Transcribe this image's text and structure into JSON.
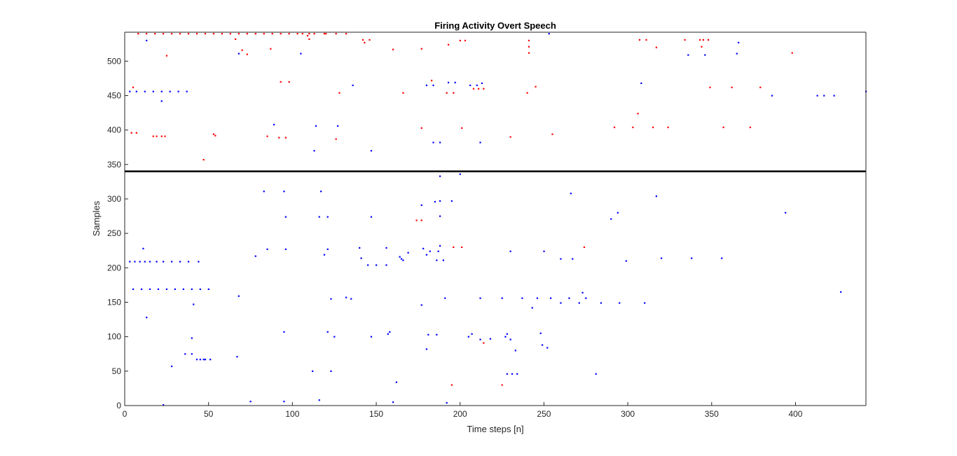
{
  "chart_data": {
    "type": "scatter",
    "title": "Firing Activity Overt Speech",
    "xlabel": "Time steps [n]",
    "ylabel": "Samples",
    "xlim": [
      0,
      442
    ],
    "ylim": [
      0,
      542
    ],
    "xticks": [
      0,
      50,
      100,
      150,
      200,
      250,
      300,
      350,
      400
    ],
    "yticks": [
      0,
      50,
      100,
      150,
      200,
      250,
      300,
      350,
      400,
      450,
      500
    ],
    "grid": false,
    "legend": "none",
    "separator_line": {
      "y": 340,
      "color": "#000000"
    },
    "series": [
      {
        "color": "#0000ff",
        "points": [
          [
            13,
            530
          ],
          [
            68,
            511
          ],
          [
            105,
            511
          ],
          [
            253,
            540
          ],
          [
            366,
            527
          ],
          [
            336,
            509
          ],
          [
            346,
            509
          ],
          [
            365,
            511
          ],
          [
            3,
            456
          ],
          [
            7,
            456
          ],
          [
            12,
            456
          ],
          [
            17,
            456
          ],
          [
            22,
            456
          ],
          [
            27,
            456
          ],
          [
            32,
            456
          ],
          [
            37,
            456
          ],
          [
            22,
            442
          ],
          [
            136,
            465
          ],
          [
            180,
            465
          ],
          [
            184,
            465
          ],
          [
            193,
            469
          ],
          [
            197,
            469
          ],
          [
            206,
            465
          ],
          [
            210,
            465
          ],
          [
            213,
            468
          ],
          [
            308,
            468
          ],
          [
            386,
            450
          ],
          [
            413,
            450
          ],
          [
            417,
            450
          ],
          [
            423,
            450
          ],
          [
            442,
            456
          ],
          [
            89,
            408
          ],
          [
            114,
            406
          ],
          [
            127,
            406
          ],
          [
            113,
            370
          ],
          [
            147,
            370
          ],
          [
            184,
            382
          ],
          [
            188,
            382
          ],
          [
            212,
            382
          ],
          [
            188,
            333
          ],
          [
            200,
            336
          ],
          [
            83,
            311
          ],
          [
            95,
            311
          ],
          [
            117,
            311
          ],
          [
            96,
            274
          ],
          [
            116,
            274
          ],
          [
            121,
            274
          ],
          [
            147,
            274
          ],
          [
            188,
            275
          ],
          [
            177,
            291
          ],
          [
            185,
            296
          ],
          [
            188,
            297
          ],
          [
            195,
            297
          ],
          [
            266,
            308
          ],
          [
            317,
            304
          ],
          [
            294,
            280
          ],
          [
            290,
            271
          ],
          [
            394,
            280
          ],
          [
            11,
            228
          ],
          [
            3,
            209
          ],
          [
            6,
            209
          ],
          [
            9,
            209
          ],
          [
            12,
            209
          ],
          [
            15,
            209
          ],
          [
            19,
            209
          ],
          [
            23,
            209
          ],
          [
            28,
            209
          ],
          [
            33,
            209
          ],
          [
            38,
            209
          ],
          [
            44,
            209
          ],
          [
            5,
            169
          ],
          [
            10,
            169
          ],
          [
            15,
            169
          ],
          [
            20,
            169
          ],
          [
            25,
            169
          ],
          [
            30,
            169
          ],
          [
            35,
            169
          ],
          [
            40,
            169
          ],
          [
            45,
            169
          ],
          [
            50,
            169
          ],
          [
            68,
            159
          ],
          [
            41,
            147
          ],
          [
            13,
            128
          ],
          [
            78,
            217
          ],
          [
            85,
            227
          ],
          [
            96,
            227
          ],
          [
            119,
            219
          ],
          [
            121,
            227
          ],
          [
            140,
            229
          ],
          [
            141,
            214
          ],
          [
            145,
            204
          ],
          [
            150,
            204
          ],
          [
            156,
            229
          ],
          [
            156,
            204
          ],
          [
            164,
            216
          ],
          [
            165,
            213
          ],
          [
            166,
            211
          ],
          [
            169,
            222
          ],
          [
            178,
            228
          ],
          [
            180,
            219
          ],
          [
            182,
            224
          ],
          [
            186,
            211
          ],
          [
            187,
            224
          ],
          [
            188,
            232
          ],
          [
            190,
            211
          ],
          [
            230,
            224
          ],
          [
            250,
            224
          ],
          [
            260,
            213
          ],
          [
            267,
            213
          ],
          [
            299,
            210
          ],
          [
            320,
            214
          ],
          [
            338,
            214
          ],
          [
            356,
            214
          ],
          [
            123,
            155
          ],
          [
            132,
            157
          ],
          [
            135,
            155
          ],
          [
            177,
            146
          ],
          [
            191,
            156
          ],
          [
            212,
            156
          ],
          [
            225,
            156
          ],
          [
            237,
            156
          ],
          [
            243,
            142
          ],
          [
            246,
            156
          ],
          [
            254,
            156
          ],
          [
            260,
            149
          ],
          [
            265,
            156
          ],
          [
            271,
            149
          ],
          [
            273,
            164
          ],
          [
            275,
            156
          ],
          [
            284,
            149
          ],
          [
            295,
            149
          ],
          [
            310,
            149
          ],
          [
            427,
            165
          ],
          [
            40,
            98
          ],
          [
            36,
            75
          ],
          [
            40,
            75
          ],
          [
            43,
            67
          ],
          [
            45,
            67
          ],
          [
            47,
            67
          ],
          [
            48,
            67
          ],
          [
            51,
            67
          ],
          [
            67,
            71
          ],
          [
            28,
            57
          ],
          [
            95,
            107
          ],
          [
            121,
            107
          ],
          [
            125,
            100
          ],
          [
            112,
            50
          ],
          [
            123,
            50
          ],
          [
            147,
            100
          ],
          [
            157,
            104
          ],
          [
            158,
            107
          ],
          [
            162,
            34
          ],
          [
            180,
            82
          ],
          [
            181,
            103
          ],
          [
            186,
            103
          ],
          [
            205,
            100
          ],
          [
            207,
            104
          ],
          [
            212,
            96
          ],
          [
            218,
            97
          ],
          [
            227,
            100
          ],
          [
            228,
            104
          ],
          [
            230,
            96
          ],
          [
            233,
            80
          ],
          [
            228,
            46
          ],
          [
            231,
            46
          ],
          [
            234,
            46
          ],
          [
            248,
            105
          ],
          [
            249,
            88
          ],
          [
            252,
            84
          ],
          [
            281,
            46
          ],
          [
            23,
            1
          ],
          [
            75,
            6
          ],
          [
            95,
            6
          ],
          [
            116,
            8
          ],
          [
            160,
            5
          ],
          [
            192,
            4
          ]
        ]
      },
      {
        "color": "#ff0000",
        "points": [
          [
            8,
            540
          ],
          [
            13,
            540
          ],
          [
            18,
            540
          ],
          [
            23,
            540
          ],
          [
            28,
            540
          ],
          [
            33,
            540
          ],
          [
            38,
            540
          ],
          [
            43,
            540
          ],
          [
            48,
            540
          ],
          [
            53,
            540
          ],
          [
            58,
            540
          ],
          [
            63,
            540
          ],
          [
            68,
            540
          ],
          [
            73,
            540
          ],
          [
            78,
            540
          ],
          [
            83,
            540
          ],
          [
            88,
            540
          ],
          [
            93,
            540
          ],
          [
            98,
            540
          ],
          [
            103,
            540
          ],
          [
            106,
            540
          ],
          [
            110,
            540
          ],
          [
            113,
            540
          ],
          [
            119,
            540
          ],
          [
            120,
            540
          ],
          [
            126,
            540
          ],
          [
            132,
            540
          ],
          [
            66,
            532
          ],
          [
            70,
            516
          ],
          [
            73,
            510
          ],
          [
            87,
            518
          ],
          [
            25,
            508
          ],
          [
            109,
            537
          ],
          [
            110,
            532
          ],
          [
            142,
            531
          ],
          [
            143,
            527
          ],
          [
            146,
            531
          ],
          [
            160,
            517
          ],
          [
            177,
            518
          ],
          [
            193,
            524
          ],
          [
            200,
            530
          ],
          [
            203,
            530
          ],
          [
            241,
            530
          ],
          [
            241,
            521
          ],
          [
            241,
            512
          ],
          [
            307,
            531
          ],
          [
            311,
            531
          ],
          [
            317,
            520
          ],
          [
            334,
            531
          ],
          [
            343,
            531
          ],
          [
            344,
            521
          ],
          [
            345,
            531
          ],
          [
            348,
            531
          ],
          [
            398,
            512
          ],
          [
            5,
            462
          ],
          [
            93,
            470
          ],
          [
            98,
            470
          ],
          [
            128,
            454
          ],
          [
            166,
            454
          ],
          [
            183,
            472
          ],
          [
            192,
            454
          ],
          [
            196,
            454
          ],
          [
            208,
            460
          ],
          [
            211,
            460
          ],
          [
            214,
            460
          ],
          [
            240,
            454
          ],
          [
            245,
            463
          ],
          [
            349,
            462
          ],
          [
            362,
            462
          ],
          [
            379,
            462
          ],
          [
            4,
            396
          ],
          [
            7,
            396
          ],
          [
            17,
            391
          ],
          [
            19,
            391
          ],
          [
            22,
            391
          ],
          [
            24,
            391
          ],
          [
            85,
            391
          ],
          [
            92,
            389
          ],
          [
            96,
            389
          ],
          [
            126,
            387
          ],
          [
            53,
            394
          ],
          [
            54,
            392
          ],
          [
            47,
            357
          ],
          [
            177,
            403
          ],
          [
            201,
            403
          ],
          [
            230,
            390
          ],
          [
            255,
            394
          ],
          [
            306,
            424
          ],
          [
            292,
            404
          ],
          [
            303,
            404
          ],
          [
            315,
            404
          ],
          [
            324,
            404
          ],
          [
            357,
            404
          ],
          [
            373,
            404
          ],
          [
            174,
            269
          ],
          [
            177,
            269
          ],
          [
            196,
            230
          ],
          [
            201,
            230
          ],
          [
            274,
            230
          ],
          [
            214,
            91
          ],
          [
            195,
            30
          ],
          [
            225,
            30
          ]
        ]
      }
    ]
  }
}
